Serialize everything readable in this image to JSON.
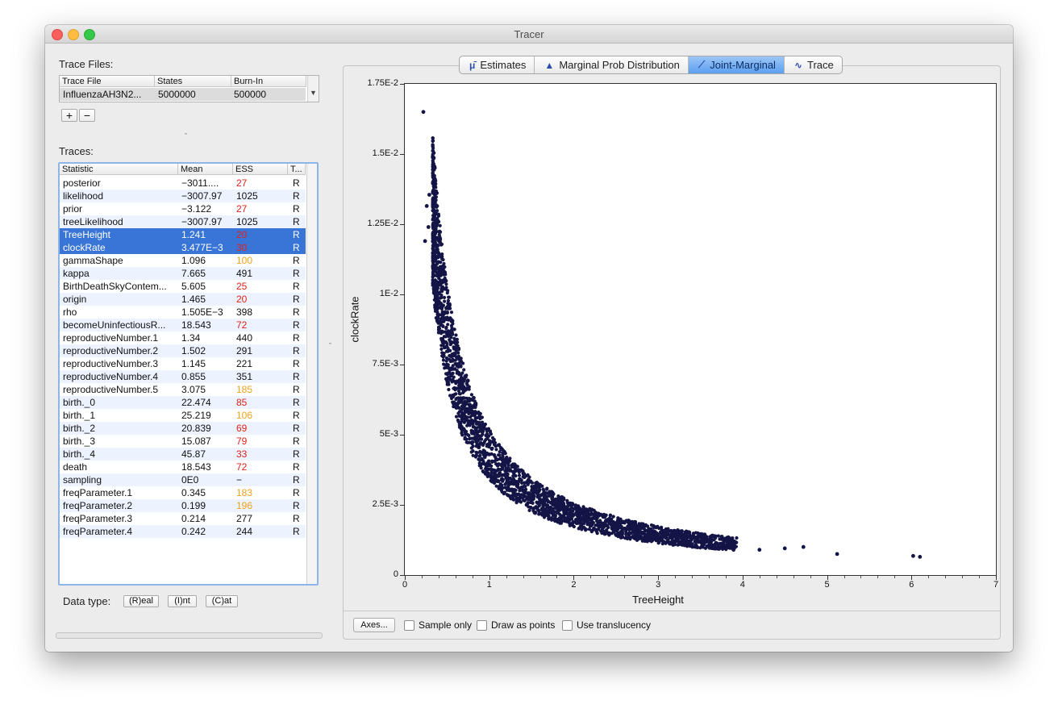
{
  "window": {
    "title": "Tracer"
  },
  "trace_files": {
    "label": "Trace Files:",
    "columns": [
      "Trace File",
      "States",
      "Burn-In"
    ],
    "rows": [
      {
        "file": "InfluenzaAH3N2...",
        "states": "5000000",
        "burnin": "500000"
      }
    ],
    "add_label": "+",
    "remove_label": "−"
  },
  "traces": {
    "label": "Traces:",
    "columns": [
      "Statistic",
      "Mean",
      "ESS",
      "T..."
    ],
    "rows": [
      {
        "stat": "posterior",
        "mean": "−3011....",
        "ess": "27",
        "type": "R",
        "ess_color": "#e0211b",
        "selected": false
      },
      {
        "stat": "likelihood",
        "mean": "−3007.97",
        "ess": "1025",
        "type": "R",
        "ess_color": "#111111",
        "selected": false
      },
      {
        "stat": "prior",
        "mean": "−3.122",
        "ess": "27",
        "type": "R",
        "ess_color": "#e0211b",
        "selected": false
      },
      {
        "stat": "treeLikelihood",
        "mean": "−3007.97",
        "ess": "1025",
        "type": "R",
        "ess_color": "#111111",
        "selected": false
      },
      {
        "stat": "TreeHeight",
        "mean": "1.241",
        "ess": "20",
        "type": "R",
        "ess_color": "#e0211b",
        "selected": true
      },
      {
        "stat": "clockRate",
        "mean": "3.477E−3",
        "ess": "30",
        "type": "R",
        "ess_color": "#e0211b",
        "selected": true
      },
      {
        "stat": "gammaShape",
        "mean": "1.096",
        "ess": "100",
        "type": "R",
        "ess_color": "#f0a21a",
        "selected": false
      },
      {
        "stat": "kappa",
        "mean": "7.665",
        "ess": "491",
        "type": "R",
        "ess_color": "#111111",
        "selected": false
      },
      {
        "stat": "BirthDeathSkyContem...",
        "mean": "5.605",
        "ess": "25",
        "type": "R",
        "ess_color": "#e0211b",
        "selected": false
      },
      {
        "stat": "origin",
        "mean": "1.465",
        "ess": "20",
        "type": "R",
        "ess_color": "#e0211b",
        "selected": false
      },
      {
        "stat": "rho",
        "mean": "1.505E−3",
        "ess": "398",
        "type": "R",
        "ess_color": "#111111",
        "selected": false
      },
      {
        "stat": "becomeUninfectiousR...",
        "mean": "18.543",
        "ess": "72",
        "type": "R",
        "ess_color": "#e0211b",
        "selected": false
      },
      {
        "stat": "reproductiveNumber.1",
        "mean": "1.34",
        "ess": "440",
        "type": "R",
        "ess_color": "#111111",
        "selected": false
      },
      {
        "stat": "reproductiveNumber.2",
        "mean": "1.502",
        "ess": "291",
        "type": "R",
        "ess_color": "#111111",
        "selected": false
      },
      {
        "stat": "reproductiveNumber.3",
        "mean": "1.145",
        "ess": "221",
        "type": "R",
        "ess_color": "#111111",
        "selected": false
      },
      {
        "stat": "reproductiveNumber.4",
        "mean": "0.855",
        "ess": "351",
        "type": "R",
        "ess_color": "#111111",
        "selected": false
      },
      {
        "stat": "reproductiveNumber.5",
        "mean": "3.075",
        "ess": "185",
        "type": "R",
        "ess_color": "#f0a21a",
        "selected": false
      },
      {
        "stat": "birth._0",
        "mean": "22.474",
        "ess": "85",
        "type": "R",
        "ess_color": "#e0211b",
        "selected": false
      },
      {
        "stat": "birth._1",
        "mean": "25.219",
        "ess": "106",
        "type": "R",
        "ess_color": "#f0a21a",
        "selected": false
      },
      {
        "stat": "birth._2",
        "mean": "20.839",
        "ess": "69",
        "type": "R",
        "ess_color": "#e0211b",
        "selected": false
      },
      {
        "stat": "birth._3",
        "mean": "15.087",
        "ess": "79",
        "type": "R",
        "ess_color": "#e0211b",
        "selected": false
      },
      {
        "stat": "birth._4",
        "mean": "45.87",
        "ess": "33",
        "type": "R",
        "ess_color": "#e0211b",
        "selected": false
      },
      {
        "stat": "death",
        "mean": "18.543",
        "ess": "72",
        "type": "R",
        "ess_color": "#e0211b",
        "selected": false
      },
      {
        "stat": "sampling",
        "mean": "0E0",
        "ess": "−",
        "type": "R",
        "ess_color": "#111111",
        "selected": false
      },
      {
        "stat": "freqParameter.1",
        "mean": "0.345",
        "ess": "183",
        "type": "R",
        "ess_color": "#f0a21a",
        "selected": false
      },
      {
        "stat": "freqParameter.2",
        "mean": "0.199",
        "ess": "196",
        "type": "R",
        "ess_color": "#f0a21a",
        "selected": false
      },
      {
        "stat": "freqParameter.3",
        "mean": "0.214",
        "ess": "277",
        "type": "R",
        "ess_color": "#111111",
        "selected": false
      },
      {
        "stat": "freqParameter.4",
        "mean": "0.242",
        "ess": "244",
        "type": "R",
        "ess_color": "#111111",
        "selected": false
      }
    ]
  },
  "data_type": {
    "label": "Data type:",
    "buttons": [
      "(R)eal",
      "(I)nt",
      "(C)at"
    ]
  },
  "tabs": [
    {
      "label": "Estimates",
      "icon": "mu-icon",
      "glyph": "μ̄",
      "active": false
    },
    {
      "label": "Marginal Prob Distribution",
      "icon": "density-icon",
      "glyph": "▲",
      "active": false
    },
    {
      "label": "Joint-Marginal",
      "icon": "joint-icon",
      "glyph": "⟋",
      "active": true
    },
    {
      "label": "Trace",
      "icon": "trace-icon",
      "glyph": "∿",
      "active": false
    }
  ],
  "bottom_bar": {
    "axes_button": "Axes...",
    "sample_only": "Sample only",
    "draw_as_points": "Draw as points",
    "use_translucency": "Use translucency"
  },
  "colors": {
    "selection": "#3875d7",
    "points": "#141446",
    "alt_row": "#edf3fe"
  },
  "chart_data": {
    "type": "scatter",
    "xlabel": "TreeHeight",
    "ylabel": "clockRate",
    "xlim": [
      0,
      7
    ],
    "ylim": [
      0,
      0.0175
    ],
    "x_ticks": [
      "0",
      "1",
      "2",
      "3",
      "4",
      "5",
      "6",
      "7"
    ],
    "y_ticks": [
      "0",
      "2.5E-3",
      "5E-3",
      "7.5E-3",
      "1E-2",
      "1.25E-2",
      "1.5E-2",
      "1.75E-2"
    ],
    "relationship": "clockRate ≈ 0.0043 / TreeHeight",
    "points": [
      [
        0.22,
        0.0165
      ],
      [
        0.33,
        0.0149
      ],
      [
        0.29,
        0.01355
      ],
      [
        0.26,
        0.01315
      ],
      [
        0.28,
        0.0124
      ],
      [
        0.24,
        0.0119
      ],
      [
        0.35,
        0.0121
      ],
      [
        0.4,
        0.0109
      ],
      [
        0.48,
        0.0105
      ],
      [
        0.45,
        0.011
      ],
      [
        0.5,
        0.0086
      ],
      [
        0.55,
        0.0078
      ],
      [
        0.62,
        0.0069
      ],
      [
        0.7,
        0.0061
      ],
      [
        0.8,
        0.0054
      ],
      [
        0.9,
        0.0047
      ],
      [
        1.0,
        0.0043
      ],
      [
        1.1,
        0.0039
      ],
      [
        1.2,
        0.0036
      ],
      [
        1.4,
        0.003
      ],
      [
        1.6,
        0.0027
      ],
      [
        1.8,
        0.0024
      ],
      [
        2.0,
        0.00215
      ],
      [
        2.3,
        0.0019
      ],
      [
        2.6,
        0.00165
      ],
      [
        3.0,
        0.00145
      ],
      [
        3.3,
        0.0013
      ],
      [
        3.6,
        0.0012
      ],
      [
        3.9,
        0.0011
      ],
      [
        4.2,
        0.0009
      ],
      [
        4.5,
        0.00095
      ],
      [
        4.72,
        0.001
      ],
      [
        5.12,
        0.00075
      ],
      [
        6.02,
        0.00068
      ],
      [
        6.1,
        0.00065
      ]
    ]
  }
}
